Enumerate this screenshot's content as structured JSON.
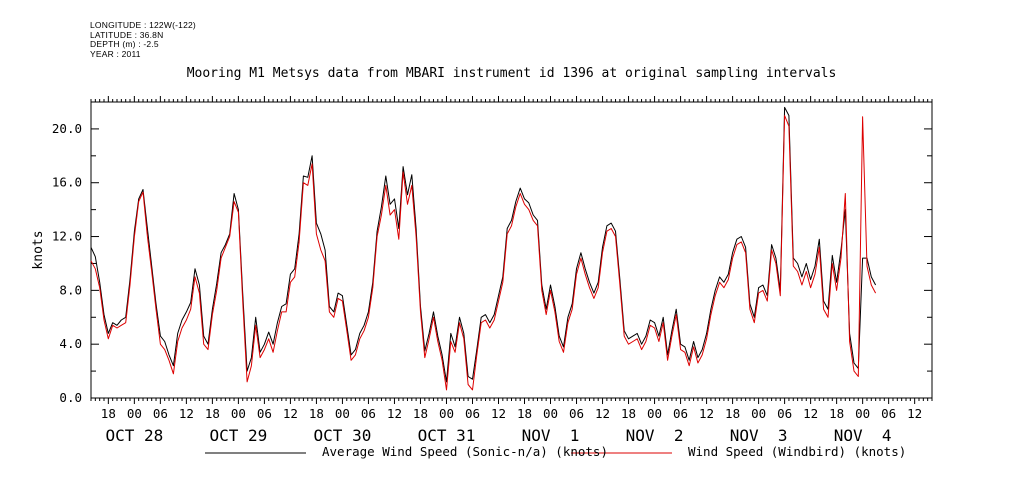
{
  "header": {
    "meta_lines": [
      "LONGITUDE : 122W(-122)",
      "LATITUDE : 36.8N",
      "DEPTH (m) : -2.5",
      "YEAR : 2011"
    ],
    "title": "Mooring M1 Metsys data from MBARI instrument id 1396 at original sampling intervals"
  },
  "chart_data": {
    "type": "line",
    "title": "Mooring M1 Metsys data from MBARI instrument id 1396 at original sampling intervals",
    "xlabel": "",
    "ylabel": "knots",
    "ylim": [
      0,
      22
    ],
    "xlim": [
      -10,
      172
    ],
    "x_units": "hours since 2011-10-28 00:00",
    "y_ticks": [
      0,
      4,
      8,
      12,
      16,
      20
    ],
    "y_tick_labels": [
      "0.0",
      "4.0",
      "8.0",
      "12.0",
      "16.0",
      "20.0"
    ],
    "x_hour_ticks": [
      {
        "x": -6,
        "label": "18"
      },
      {
        "x": 0,
        "label": "00"
      },
      {
        "x": 6,
        "label": "06"
      },
      {
        "x": 12,
        "label": "12"
      },
      {
        "x": 18,
        "label": "18"
      },
      {
        "x": 24,
        "label": "00"
      },
      {
        "x": 30,
        "label": "06"
      },
      {
        "x": 36,
        "label": "12"
      },
      {
        "x": 42,
        "label": "18"
      },
      {
        "x": 48,
        "label": "00"
      },
      {
        "x": 54,
        "label": "06"
      },
      {
        "x": 60,
        "label": "12"
      },
      {
        "x": 66,
        "label": "18"
      },
      {
        "x": 72,
        "label": "00"
      },
      {
        "x": 78,
        "label": "06"
      },
      {
        "x": 84,
        "label": "12"
      },
      {
        "x": 90,
        "label": "18"
      },
      {
        "x": 96,
        "label": "00"
      },
      {
        "x": 102,
        "label": "06"
      },
      {
        "x": 108,
        "label": "12"
      },
      {
        "x": 114,
        "label": "18"
      },
      {
        "x": 120,
        "label": "00"
      },
      {
        "x": 126,
        "label": "06"
      },
      {
        "x": 132,
        "label": "12"
      },
      {
        "x": 138,
        "label": "18"
      },
      {
        "x": 144,
        "label": "00"
      },
      {
        "x": 150,
        "label": "06"
      },
      {
        "x": 156,
        "label": "12"
      },
      {
        "x": 162,
        "label": "18"
      },
      {
        "x": 168,
        "label": "00"
      },
      {
        "x": 174,
        "label": "06"
      },
      {
        "x": 180,
        "label": "12"
      }
    ],
    "x_day_labels": [
      {
        "x": 0,
        "label": "OCT 28"
      },
      {
        "x": 24,
        "label": "OCT 29"
      },
      {
        "x": 48,
        "label": "OCT 30"
      },
      {
        "x": 72,
        "label": "OCT 31"
      },
      {
        "x": 96,
        "label": "NOV  1"
      },
      {
        "x": 120,
        "label": "NOV  2"
      },
      {
        "x": 144,
        "label": "NOV  3"
      },
      {
        "x": 168,
        "label": "NOV  4"
      }
    ],
    "legend_placement": "bottom",
    "grid": false,
    "series": [
      {
        "name": "Average Wind Speed (Sonic-n/a) (knots)",
        "color": "#000000",
        "x": [
          -10,
          -9,
          -8,
          -7,
          -6,
          -5,
          -4,
          -3,
          -2,
          -1,
          0,
          1,
          2,
          3,
          4,
          5,
          6,
          7,
          8,
          9,
          10,
          11,
          12,
          13,
          14,
          15,
          16,
          17,
          18,
          19,
          20,
          21,
          22,
          23,
          24,
          25,
          26,
          27,
          28,
          29,
          30,
          31,
          32,
          33,
          34,
          35,
          36,
          37,
          38,
          39,
          40,
          41,
          42,
          43,
          44,
          45,
          46,
          47,
          48,
          49,
          50,
          51,
          52,
          53,
          54,
          55,
          56,
          57,
          58,
          59,
          60,
          61,
          62,
          63,
          64,
          65,
          66,
          67,
          68,
          69,
          70,
          71,
          72,
          73,
          74,
          75,
          76,
          77,
          78,
          79,
          80,
          81,
          82,
          83,
          84,
          85,
          86,
          87,
          88,
          89,
          90,
          91,
          92,
          93,
          94,
          95,
          96,
          97,
          98,
          99,
          100,
          101,
          102,
          103,
          104,
          105,
          106,
          107,
          108,
          109,
          110,
          111,
          112,
          113,
          114,
          115,
          116,
          117,
          118,
          119,
          120,
          121,
          122,
          123,
          124,
          125,
          126,
          127,
          128,
          129,
          130,
          131,
          132,
          133,
          134,
          135,
          136,
          137,
          138,
          139,
          140,
          141,
          142,
          143,
          144,
          145,
          146,
          147,
          148,
          149,
          150,
          151,
          152,
          153,
          154,
          155,
          156,
          157,
          158,
          159,
          160,
          161,
          162,
          163,
          164,
          165,
          166,
          167,
          168,
          169,
          170,
          171
        ],
        "y": [
          11.2,
          10.5,
          8.6,
          6.2,
          4.8,
          5.6,
          5.4,
          5.8,
          6.0,
          8.8,
          12.4,
          14.8,
          15.5,
          12.6,
          9.8,
          7.0,
          4.6,
          4.2,
          3.2,
          2.4,
          4.8,
          5.8,
          6.4,
          7.1,
          9.6,
          8.4,
          4.6,
          4.0,
          6.6,
          8.5,
          10.8,
          11.4,
          12.2,
          15.2,
          14.0,
          7.8,
          2.0,
          3.0,
          6.0,
          3.4,
          4.0,
          4.9,
          4.0,
          5.6,
          6.8,
          7.0,
          9.2,
          9.6,
          12.2,
          16.5,
          16.4,
          18.0,
          13.0,
          12.2,
          11.0,
          6.8,
          6.4,
          7.8,
          7.6,
          5.4,
          3.2,
          3.6,
          4.8,
          5.4,
          6.4,
          8.6,
          12.4,
          14.2,
          16.5,
          14.4,
          14.8,
          12.6,
          17.2,
          15.1,
          16.6,
          12.6,
          6.8,
          3.5,
          4.8,
          6.4,
          4.6,
          3.2,
          1.2,
          4.8,
          3.8,
          6.0,
          4.8,
          1.6,
          1.4,
          3.6,
          6.0,
          6.2,
          5.6,
          6.2,
          7.6,
          9.0,
          12.6,
          13.2,
          14.6,
          15.6,
          14.8,
          14.5,
          13.6,
          13.2,
          8.4,
          6.6,
          8.4,
          6.8,
          4.6,
          3.8,
          6.0,
          7.0,
          9.6,
          10.8,
          9.6,
          8.6,
          7.8,
          8.6,
          11.2,
          12.8,
          13.0,
          12.4,
          8.8,
          5.0,
          4.4,
          4.6,
          4.8,
          4.0,
          4.6,
          5.8,
          5.6,
          4.6,
          6.0,
          3.2,
          5.0,
          6.6,
          4.0,
          3.8,
          2.8,
          4.2,
          3.0,
          3.6,
          4.8,
          6.6,
          8.0,
          9.0,
          8.6,
          9.2,
          10.8,
          11.8,
          12.0,
          11.2,
          7.0,
          6.0,
          8.2,
          8.4,
          7.6,
          11.4,
          10.4,
          8.0,
          21.6,
          21.0,
          10.4,
          10.0,
          9.0,
          10.0,
          8.8,
          9.8,
          11.8,
          7.2,
          6.6,
          10.6,
          8.6,
          11.0,
          14.0,
          4.8,
          2.6,
          2.2,
          10.4,
          10.4,
          9.0,
          8.4
        ]
      },
      {
        "name": "Wind Speed (Windbird) (knots)",
        "color": "#dd0000",
        "x": [
          -10,
          -9,
          -8,
          -7,
          -6,
          -5,
          -4,
          -3,
          -2,
          -1,
          0,
          1,
          2,
          3,
          4,
          5,
          6,
          7,
          8,
          9,
          10,
          11,
          12,
          13,
          14,
          15,
          16,
          17,
          18,
          19,
          20,
          21,
          22,
          23,
          24,
          25,
          26,
          27,
          28,
          29,
          30,
          31,
          32,
          33,
          34,
          35,
          36,
          37,
          38,
          39,
          40,
          41,
          42,
          43,
          44,
          45,
          46,
          47,
          48,
          49,
          50,
          51,
          52,
          53,
          54,
          55,
          56,
          57,
          58,
          59,
          60,
          61,
          62,
          63,
          64,
          65,
          66,
          67,
          68,
          69,
          70,
          71,
          72,
          73,
          74,
          75,
          76,
          77,
          78,
          79,
          80,
          81,
          82,
          83,
          84,
          85,
          86,
          87,
          88,
          89,
          90,
          91,
          92,
          93,
          94,
          95,
          96,
          97,
          98,
          99,
          100,
          101,
          102,
          103,
          104,
          105,
          106,
          107,
          108,
          109,
          110,
          111,
          112,
          113,
          114,
          115,
          116,
          117,
          118,
          119,
          120,
          121,
          122,
          123,
          124,
          125,
          126,
          127,
          128,
          129,
          130,
          131,
          132,
          133,
          134,
          135,
          136,
          137,
          138,
          139,
          140,
          141,
          142,
          143,
          144,
          145,
          146,
          147,
          148,
          149,
          150,
          151,
          152,
          153,
          154,
          155,
          156,
          157,
          158,
          159,
          160,
          161,
          162,
          163,
          164,
          165,
          166,
          167,
          168,
          169,
          170,
          171
        ],
        "y": [
          10.2,
          9.6,
          8.2,
          5.8,
          4.4,
          5.4,
          5.2,
          5.4,
          5.6,
          8.4,
          12.0,
          14.6,
          15.3,
          12.0,
          9.4,
          6.6,
          4.0,
          3.6,
          2.8,
          1.8,
          4.2,
          5.2,
          5.8,
          6.6,
          9.0,
          7.8,
          4.0,
          3.6,
          6.2,
          8.0,
          10.4,
          11.2,
          12.0,
          14.6,
          13.8,
          7.2,
          1.2,
          2.4,
          5.4,
          3.0,
          3.6,
          4.4,
          3.4,
          5.0,
          6.4,
          6.4,
          8.6,
          9.0,
          11.6,
          16.0,
          15.8,
          17.4,
          12.2,
          11.0,
          10.2,
          6.4,
          6.0,
          7.4,
          7.2,
          5.0,
          2.8,
          3.2,
          4.4,
          5.0,
          6.0,
          8.2,
          12.0,
          13.6,
          15.8,
          13.6,
          14.0,
          11.8,
          16.8,
          14.4,
          15.8,
          12.0,
          6.4,
          3.0,
          4.4,
          6.0,
          4.2,
          2.8,
          0.6,
          4.2,
          3.4,
          5.6,
          4.4,
          1.0,
          0.6,
          3.2,
          5.6,
          5.8,
          5.2,
          5.8,
          7.2,
          8.6,
          12.2,
          12.8,
          14.2,
          15.2,
          14.4,
          14.0,
          13.2,
          12.8,
          8.0,
          6.2,
          8.0,
          6.4,
          4.2,
          3.4,
          5.6,
          6.6,
          9.2,
          10.4,
          9.2,
          8.2,
          7.4,
          8.2,
          10.8,
          12.4,
          12.6,
          12.0,
          8.4,
          4.6,
          4.0,
          4.2,
          4.4,
          3.6,
          4.2,
          5.4,
          5.2,
          4.2,
          5.6,
          2.8,
          4.6,
          6.2,
          3.6,
          3.4,
          2.4,
          3.8,
          2.6,
          3.2,
          4.4,
          6.2,
          7.6,
          8.6,
          8.2,
          8.8,
          10.4,
          11.4,
          11.6,
          10.8,
          6.6,
          5.6,
          7.8,
          8.0,
          7.2,
          11.0,
          10.0,
          7.6,
          21.0,
          20.2,
          9.8,
          9.4,
          8.4,
          9.4,
          8.2,
          9.2,
          11.2,
          6.6,
          6.0,
          10.0,
          8.0,
          10.4,
          15.2,
          4.2,
          2.0,
          1.6,
          20.9,
          9.8,
          8.4,
          7.8
        ]
      }
    ]
  },
  "legend": {
    "items": [
      {
        "label": "Average Wind Speed (Sonic-n/a) (knots)",
        "color": "#000000"
      },
      {
        "label": "Wind Speed (Windbird) (knots)",
        "color": "#dd0000"
      }
    ]
  }
}
